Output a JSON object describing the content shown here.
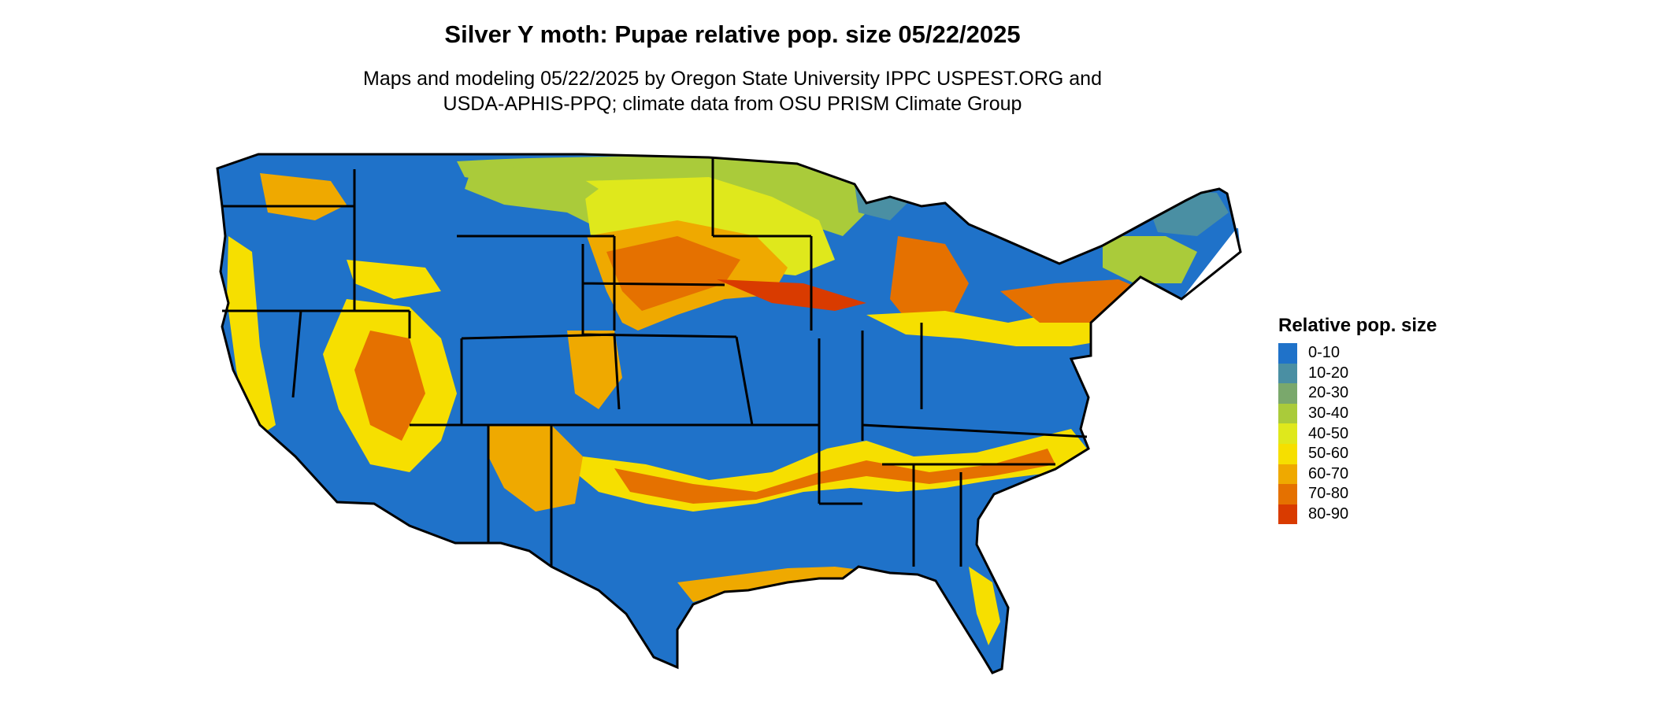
{
  "title": "Silver Y moth: Pupae relative pop. size 05/22/2025",
  "subtitle_lines": [
    "Maps and modeling 05/22/2025 by Oregon State University IPPC USPEST.ORG and",
    "USDA-APHIS-PPQ; climate data from OSU PRISM Climate Group"
  ],
  "map": {
    "region": "Contiguous United States",
    "background_class": "0-10"
  },
  "legend": {
    "title": "Relative pop. size",
    "items": [
      {
        "label": "0-10",
        "color": "#1f72c9"
      },
      {
        "label": "10-20",
        "color": "#4a8fa3"
      },
      {
        "label": "20-30",
        "color": "#7aa86c"
      },
      {
        "label": "30-40",
        "color": "#aacb3a"
      },
      {
        "label": "40-50",
        "color": "#dfe81c"
      },
      {
        "label": "50-60",
        "color": "#f6df00"
      },
      {
        "label": "60-70",
        "color": "#efa900"
      },
      {
        "label": "70-80",
        "color": "#e57100"
      },
      {
        "label": "80-90",
        "color": "#d93b00"
      }
    ]
  }
}
